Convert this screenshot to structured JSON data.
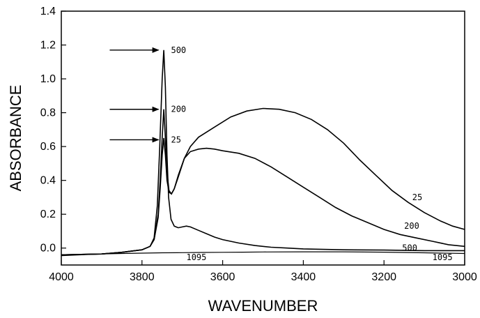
{
  "chart_data": {
    "type": "line",
    "xlabel": "WAVENUMBER",
    "ylabel": "ABSORBANCE",
    "xlim": [
      4000,
      3000
    ],
    "ylim": [
      -0.1,
      1.4
    ],
    "x_ticks": [
      4000,
      3800,
      3600,
      3400,
      3200,
      3000
    ],
    "x_tick_labels": [
      "4000",
      "3800",
      "3600",
      "3400",
      "3200",
      "3000"
    ],
    "y_ticks": [
      0.0,
      0.2,
      0.4,
      0.6,
      0.8,
      1.0,
      1.2,
      1.4
    ],
    "y_tick_labels": [
      "0.0",
      "0.2",
      "0.4",
      "0.6",
      "0.8",
      "1.0",
      "1.2",
      "1.4"
    ],
    "grid": false,
    "series": [
      {
        "name": "25",
        "points": [
          [
            4000,
            -0.04
          ],
          [
            3900,
            -0.035
          ],
          [
            3850,
            -0.025
          ],
          [
            3800,
            -0.01
          ],
          [
            3780,
            0.01
          ],
          [
            3770,
            0.05
          ],
          [
            3760,
            0.18
          ],
          [
            3755,
            0.35
          ],
          [
            3750,
            0.55
          ],
          [
            3746,
            0.65
          ],
          [
            3742,
            0.55
          ],
          [
            3738,
            0.4
          ],
          [
            3733,
            0.33
          ],
          [
            3727,
            0.32
          ],
          [
            3720,
            0.35
          ],
          [
            3710,
            0.42
          ],
          [
            3695,
            0.53
          ],
          [
            3680,
            0.6
          ],
          [
            3660,
            0.655
          ],
          [
            3620,
            0.715
          ],
          [
            3580,
            0.775
          ],
          [
            3540,
            0.81
          ],
          [
            3500,
            0.825
          ],
          [
            3460,
            0.82
          ],
          [
            3420,
            0.8
          ],
          [
            3380,
            0.76
          ],
          [
            3340,
            0.7
          ],
          [
            3300,
            0.62
          ],
          [
            3260,
            0.52
          ],
          [
            3220,
            0.43
          ],
          [
            3180,
            0.34
          ],
          [
            3140,
            0.27
          ],
          [
            3100,
            0.21
          ],
          [
            3060,
            0.16
          ],
          [
            3030,
            0.13
          ],
          [
            3000,
            0.11
          ]
        ]
      },
      {
        "name": "200",
        "points": [
          [
            4000,
            -0.04
          ],
          [
            3900,
            -0.035
          ],
          [
            3850,
            -0.025
          ],
          [
            3800,
            -0.01
          ],
          [
            3780,
            0.01
          ],
          [
            3770,
            0.05
          ],
          [
            3760,
            0.2
          ],
          [
            3755,
            0.4
          ],
          [
            3750,
            0.65
          ],
          [
            3746,
            0.82
          ],
          [
            3742,
            0.65
          ],
          [
            3738,
            0.45
          ],
          [
            3733,
            0.34
          ],
          [
            3727,
            0.32
          ],
          [
            3720,
            0.35
          ],
          [
            3710,
            0.43
          ],
          [
            3695,
            0.53
          ],
          [
            3680,
            0.57
          ],
          [
            3660,
            0.585
          ],
          [
            3640,
            0.59
          ],
          [
            3620,
            0.585
          ],
          [
            3600,
            0.575
          ],
          [
            3560,
            0.56
          ],
          [
            3520,
            0.53
          ],
          [
            3480,
            0.48
          ],
          [
            3440,
            0.42
          ],
          [
            3400,
            0.36
          ],
          [
            3360,
            0.3
          ],
          [
            3320,
            0.24
          ],
          [
            3280,
            0.19
          ],
          [
            3240,
            0.15
          ],
          [
            3200,
            0.11
          ],
          [
            3160,
            0.08
          ],
          [
            3120,
            0.06
          ],
          [
            3080,
            0.04
          ],
          [
            3040,
            0.02
          ],
          [
            3000,
            0.01
          ]
        ]
      },
      {
        "name": "500",
        "points": [
          [
            4000,
            -0.04
          ],
          [
            3900,
            -0.035
          ],
          [
            3850,
            -0.025
          ],
          [
            3800,
            -0.01
          ],
          [
            3780,
            0.01
          ],
          [
            3770,
            0.06
          ],
          [
            3762,
            0.25
          ],
          [
            3756,
            0.6
          ],
          [
            3750,
            1.0
          ],
          [
            3746,
            1.17
          ],
          [
            3742,
            0.95
          ],
          [
            3738,
            0.55
          ],
          [
            3734,
            0.3
          ],
          [
            3728,
            0.17
          ],
          [
            3720,
            0.13
          ],
          [
            3710,
            0.12
          ],
          [
            3700,
            0.125
          ],
          [
            3690,
            0.13
          ],
          [
            3680,
            0.125
          ],
          [
            3660,
            0.105
          ],
          [
            3640,
            0.085
          ],
          [
            3620,
            0.065
          ],
          [
            3600,
            0.05
          ],
          [
            3560,
            0.03
          ],
          [
            3520,
            0.015
          ],
          [
            3480,
            0.005
          ],
          [
            3440,
            0.0
          ],
          [
            3400,
            -0.005
          ],
          [
            3300,
            -0.01
          ],
          [
            3200,
            -0.012
          ],
          [
            3100,
            -0.015
          ],
          [
            3000,
            -0.015
          ]
        ]
      },
      {
        "name": "1095",
        "points": [
          [
            4000,
            -0.045
          ],
          [
            3950,
            -0.04
          ],
          [
            3900,
            -0.035
          ],
          [
            3850,
            -0.032
          ],
          [
            3800,
            -0.03
          ],
          [
            3750,
            -0.028
          ],
          [
            3700,
            -0.027
          ],
          [
            3650,
            -0.026
          ],
          [
            3600,
            -0.025
          ],
          [
            3550,
            -0.024
          ],
          [
            3500,
            -0.023
          ],
          [
            3400,
            -0.022
          ],
          [
            3300,
            -0.022
          ],
          [
            3200,
            -0.024
          ],
          [
            3100,
            -0.028
          ],
          [
            3000,
            -0.032
          ]
        ]
      }
    ],
    "curve_labels": [
      {
        "text": "500",
        "x": 3728,
        "y": 1.17
      },
      {
        "text": "200",
        "x": 3728,
        "y": 0.82
      },
      {
        "text": "25",
        "x": 3728,
        "y": 0.64
      },
      {
        "text": "25",
        "x": 3130,
        "y": 0.3
      },
      {
        "text": "200",
        "x": 3150,
        "y": 0.13
      },
      {
        "text": "500",
        "x": 3155,
        "y": 0.0
      },
      {
        "text": "1095",
        "x": 3690,
        "y": -0.055
      },
      {
        "text": "1095",
        "x": 3080,
        "y": -0.055
      }
    ],
    "arrows": [
      {
        "from_x": 3880,
        "to_x": 3752,
        "y": 1.17
      },
      {
        "from_x": 3880,
        "to_x": 3752,
        "y": 0.82
      },
      {
        "from_x": 3880,
        "to_x": 3752,
        "y": 0.64
      }
    ]
  }
}
